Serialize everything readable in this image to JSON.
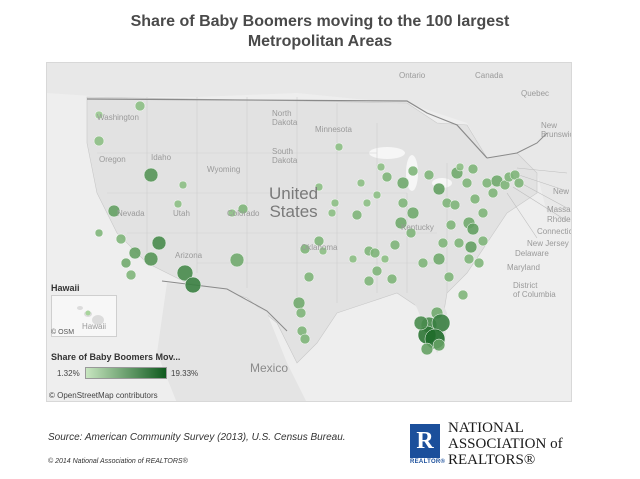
{
  "title": {
    "line1": "Share of Baby Boomers moving to the 100 largest",
    "line2": "Metropolitan Areas"
  },
  "map_labels": {
    "countries": {
      "canada": "Canada",
      "ontario": "Ontario",
      "quebec": "Quebec",
      "us": "United\nStates",
      "mexico": "Mexico"
    },
    "states": {
      "washington": "Washington",
      "oregon": "Oregon",
      "idaho": "Idaho",
      "wyoming": "Wyoming",
      "nevada": "Nevada",
      "utah": "Utah",
      "colorado": "Colorado",
      "arizona": "Arizona",
      "north_dakota": "North\nDakota",
      "south_dakota": "South\nDakota",
      "minnesota": "Minnesota",
      "oklahoma": "Oklahoma",
      "kentucky": "Kentucky",
      "new_brunswick": "New\nBrunswick",
      "new": "New",
      "massachusetts": "Massa",
      "rhode": "Rhode",
      "connecticut": "Connecticu",
      "new_jersey": "New Jersey",
      "delaware": "Delaware",
      "maryland": "Maryland",
      "district": "District\nof Columbia"
    }
  },
  "hawaii_inset": {
    "title": "Hawaii",
    "label": "Hawaii",
    "osm": "© OSM"
  },
  "legend": {
    "title": "Share of Baby Boomers Mov...",
    "min": "1.32%",
    "max": "19.33%",
    "color_min": "#c8e6c0",
    "color_max": "#0f5a1e"
  },
  "attribution": "© OpenStreetMap contributors",
  "source": "Source: American Community Survey (2013), U.S. Census Bureau.",
  "copyright": "© 2014 National Association of REALTORS®",
  "logo": {
    "r_letter": "R",
    "r_sub": "REALTOR®",
    "line1": "NATIONAL",
    "line2": "ASSOCIATION of",
    "line3": "REALTORS®"
  },
  "colors": {
    "marker_light": "#a8d49c",
    "marker_dark": "#1f6b2a",
    "map_bg": "#eeeeee",
    "land": "#e3e3e3"
  }
}
